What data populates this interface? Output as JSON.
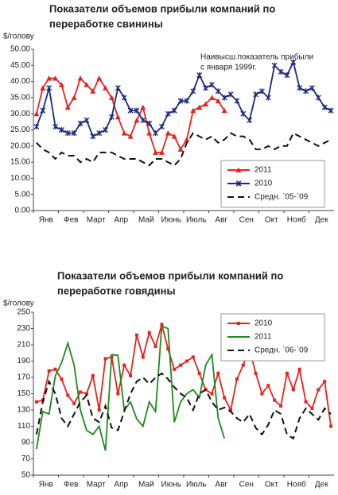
{
  "chart_data": [
    {
      "type": "line",
      "title": [
        "Показатели объемов прибыли компаний по",
        "переработке свинины"
      ],
      "y_label": "$/голову",
      "annotations": [
        "Наивысш.показатель прибыли",
        "с января 1999г."
      ],
      "categories": [
        "Янв",
        null,
        null,
        null,
        "Фев",
        null,
        null,
        null,
        "Март",
        null,
        null,
        null,
        "Апр",
        null,
        null,
        null,
        "Май",
        null,
        null,
        null,
        "Июнь",
        null,
        null,
        null,
        "Июль",
        null,
        null,
        null,
        "Авг",
        null,
        null,
        null,
        "Сен",
        null,
        null,
        null,
        "Окт",
        null,
        null,
        null,
        "Нояб",
        null,
        null,
        null,
        "Дек",
        null,
        null,
        null
      ],
      "ylim": [
        0,
        50
      ],
      "yticks": [
        {
          "value": 0,
          "label": "0.00"
        },
        {
          "value": 5,
          "label": "5.00"
        },
        {
          "value": 10,
          "label": "10.00"
        },
        {
          "value": 15,
          "label": "15.00"
        },
        {
          "value": 20,
          "label": "20.00"
        },
        {
          "value": 25,
          "label": "25.00"
        },
        {
          "value": 30,
          "label": "30.00"
        },
        {
          "value": 35,
          "label": "35.00"
        },
        {
          "value": 40,
          "label": "40.00"
        },
        {
          "value": 45,
          "label": "45.00"
        },
        {
          "value": 50,
          "label": "50.00"
        }
      ],
      "grid": false,
      "legend": "lower right",
      "series": [
        {
          "name": "2011",
          "color": "#e8231f",
          "marker": "triangle",
          "dash": false,
          "values": [
            30,
            38,
            41,
            41,
            39,
            32,
            35,
            41,
            39,
            37,
            41,
            38,
            35,
            29,
            24,
            23,
            28,
            32,
            24,
            18,
            18,
            24,
            23,
            19,
            22,
            31,
            32,
            33,
            35,
            34,
            31,
            null,
            null,
            null,
            null,
            null,
            null,
            null,
            null,
            null,
            null,
            null,
            null,
            null,
            null,
            null,
            null,
            null
          ]
        },
        {
          "name": "2010",
          "color": "#1c2a80",
          "marker": "x",
          "dash": false,
          "values": [
            26,
            31,
            38,
            26,
            25,
            24,
            24,
            27,
            28,
            23,
            24,
            25,
            29,
            38,
            35,
            31,
            31,
            28,
            27,
            24,
            26,
            30,
            31,
            34,
            34,
            37,
            42,
            38,
            39,
            37,
            35,
            36,
            34,
            30,
            28,
            36,
            37,
            35,
            45,
            43,
            42,
            46,
            38,
            37,
            38,
            35,
            32,
            31
          ]
        },
        {
          "name": "Средн. `05-`09",
          "color": "#111111",
          "marker": "none",
          "dash": true,
          "values": [
            21,
            19,
            18,
            16,
            18,
            17,
            17,
            15,
            16,
            15,
            18,
            18,
            18,
            17,
            16,
            16,
            16,
            15,
            14,
            16,
            16,
            15,
            14,
            16,
            21,
            24,
            23,
            22,
            23,
            21,
            22,
            24,
            23,
            23,
            22,
            19,
            19,
            20,
            19,
            20,
            20,
            24,
            23,
            22,
            21,
            20,
            21,
            22
          ]
        }
      ]
    },
    {
      "type": "line",
      "title": [
        "Показатели объемов прибыли компаний по",
        "переработке говядины"
      ],
      "y_label": "$/голову",
      "categories": [
        "Янв",
        null,
        null,
        null,
        "Фев",
        null,
        null,
        null,
        "Март",
        null,
        null,
        null,
        "Апр",
        null,
        null,
        null,
        "Май",
        null,
        null,
        null,
        "Июнь",
        null,
        null,
        null,
        "Июль",
        null,
        null,
        null,
        "Авг",
        null,
        null,
        null,
        "Сен",
        null,
        null,
        null,
        "Окт",
        null,
        null,
        null,
        "Нояб",
        null,
        null,
        null,
        "Дек",
        null,
        null,
        null
      ],
      "ylim": [
        50,
        250
      ],
      "yticks": [
        50,
        70,
        90,
        110,
        130,
        150,
        170,
        190,
        210,
        230,
        250
      ],
      "grid": false,
      "legend": "upper right",
      "series": [
        {
          "name": "2010",
          "color": "#e8231f",
          "marker": "square",
          "dash": false,
          "values": [
            140,
            142,
            178,
            180,
            168,
            148,
            138,
            152,
            150,
            172,
            130,
            193,
            195,
            150,
            185,
            172,
            222,
            195,
            225,
            208,
            235,
            205,
            180,
            185,
            190,
            195,
            175,
            155,
            150,
            175,
            145,
            130,
            168,
            185,
            205,
            175,
            150,
            160,
            142,
            135,
            175,
            155,
            180,
            140,
            132,
            155,
            165,
            110
          ]
        },
        {
          "name": "2011",
          "color": "#1e8a1e",
          "marker": "none",
          "dash": false,
          "values": [
            82,
            128,
            125,
            172,
            188,
            212,
            185,
            130,
            105,
            100,
            110,
            80,
            198,
            197,
            130,
            140,
            119,
            110,
            140,
            128,
            233,
            230,
            115,
            140,
            150,
            155,
            145,
            185,
            198,
            120,
            95,
            null,
            null,
            null,
            null,
            null,
            null,
            null,
            null,
            null,
            null,
            null,
            null,
            null,
            null,
            null,
            null,
            null
          ]
        },
        {
          "name": "Средн. `06-`09",
          "color": "#111111",
          "marker": "none",
          "dash": true,
          "values": [
            100,
            140,
            165,
            150,
            120,
            110,
            125,
            140,
            148,
            120,
            115,
            135,
            108,
            105,
            128,
            150,
            165,
            170,
            162,
            170,
            175,
            168,
            158,
            150,
            145,
            130,
            150,
            155,
            140,
            130,
            133,
            128,
            120,
            115,
            125,
            108,
            100,
            112,
            130,
            125,
            100,
            95,
            120,
            132,
            125,
            118,
            132,
            125
          ]
        }
      ]
    }
  ]
}
